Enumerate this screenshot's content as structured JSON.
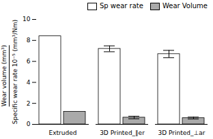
{
  "chart_data": {
    "type": "bar",
    "categories": [
      "Extruded",
      "3D Printed_∥er",
      "3D Printed_⊥ar"
    ],
    "series": [
      {
        "name": "Sp wear rate",
        "color": "white",
        "values": [
          8.4,
          7.2,
          6.7
        ],
        "errors": [
          0.0,
          0.28,
          0.35
        ]
      },
      {
        "name": "Wear Volume",
        "color": "#aaaaaa",
        "values": [
          1.2,
          0.65,
          0.6
        ],
        "errors": [
          0.0,
          0.12,
          0.09
        ]
      }
    ],
    "ylabel": "Specific wear rate 10⁻⁵ (mm³/Nm)",
    "annotations": [
      "Wear volume (mm³)"
    ],
    "ylim": [
      0,
      10
    ],
    "yticks": [
      0,
      2,
      4,
      6,
      8,
      10
    ],
    "legend": "upper right"
  }
}
